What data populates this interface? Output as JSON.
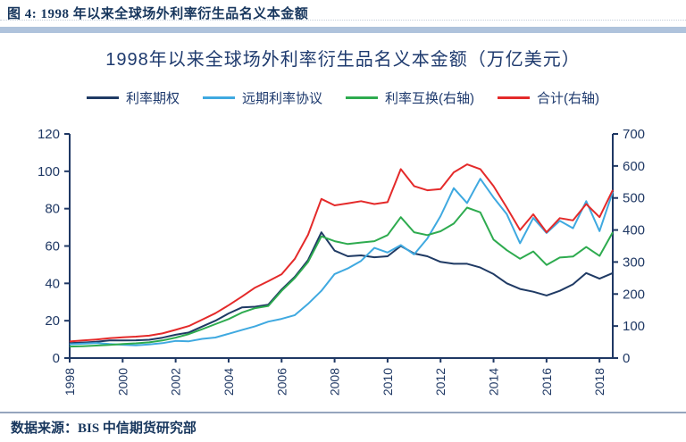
{
  "header": {
    "title": "图 4: 1998 年以来全球场外利率衍生品名义本金额"
  },
  "footer": {
    "source": "数据来源：BIS  中信期货研究部"
  },
  "colors": {
    "axis": "#1f3864",
    "text": "#1e3a6e",
    "header_bar": "#afc3dc"
  },
  "chart_data": {
    "type": "line",
    "title": "1998年以来全球场外利率衍生品名义本金额（万亿美元）",
    "x_unit": "half-year, 1998H1 to 2018H2",
    "x": [
      1998.0,
      1998.5,
      1999.0,
      1999.5,
      2000.0,
      2000.5,
      2001.0,
      2001.5,
      2002.0,
      2002.5,
      2003.0,
      2003.5,
      2004.0,
      2004.5,
      2005.0,
      2005.5,
      2006.0,
      2006.5,
      2007.0,
      2007.5,
      2008.0,
      2008.5,
      2009.0,
      2009.5,
      2010.0,
      2010.5,
      2011.0,
      2011.5,
      2012.0,
      2012.5,
      2013.0,
      2013.5,
      2014.0,
      2014.5,
      2015.0,
      2015.5,
      2016.0,
      2016.5,
      2017.0,
      2017.5,
      2018.0,
      2018.5
    ],
    "x_tick_labels": [
      "1998",
      "2000",
      "2002",
      "2004",
      "2006",
      "2008",
      "2010",
      "2012",
      "2014",
      "2016",
      "2018"
    ],
    "left_axis": {
      "min": 0,
      "max": 120,
      "step": 20,
      "ticks": [
        0,
        20,
        40,
        60,
        80,
        100,
        120
      ]
    },
    "right_axis": {
      "min": 0,
      "max": 700,
      "step": 100,
      "ticks": [
        0,
        100,
        200,
        300,
        400,
        500,
        600,
        700
      ]
    },
    "grid": false,
    "legend_position": "top",
    "series": [
      {
        "name": "利率期权",
        "axis": "left",
        "color": "#1f3a64",
        "values": [
          8.0,
          8.3,
          8.7,
          9.4,
          9.4,
          9.5,
          9.8,
          10.9,
          12.5,
          13.7,
          16.9,
          20.0,
          23.9,
          27.1,
          27.5,
          28.6,
          36.7,
          43.5,
          52.5,
          67.3,
          57.5,
          54.5,
          55.0,
          54.0,
          54.5,
          60.0,
          56.0,
          54.5,
          51.5,
          50.5,
          50.5,
          48.5,
          45.0,
          40.0,
          37.0,
          35.5,
          33.5,
          36.0,
          39.5,
          45.5,
          42.5,
          45.5
        ]
      },
      {
        "name": "远期利率协议",
        "axis": "left",
        "color": "#3fa9e0",
        "values": [
          7.4,
          7.7,
          8.1,
          7.5,
          7.1,
          6.8,
          7.3,
          8.0,
          9.2,
          9.0,
          10.3,
          11.0,
          13.0,
          15.0,
          17.0,
          19.5,
          21.0,
          23.0,
          29.0,
          36.0,
          45.0,
          48.0,
          52.0,
          59.0,
          56.5,
          60.5,
          55.5,
          64.0,
          76.0,
          91.0,
          83.0,
          96.0,
          86.0,
          77.0,
          61.5,
          75.0,
          67.0,
          73.5,
          69.5,
          84.0,
          68.0,
          89.0
        ]
      },
      {
        "name": "利率互换(右轴)",
        "axis": "right",
        "color": "#2eab4f",
        "values": [
          36,
          37,
          39,
          41,
          44,
          46,
          49,
          55,
          64,
          75,
          90,
          106,
          122,
          142,
          156,
          163,
          210,
          250,
          300,
          380,
          365,
          356,
          361,
          365,
          384,
          440,
          393,
          384,
          396,
          420,
          470,
          455,
          370,
          337,
          310,
          333,
          291,
          314,
          317,
          347,
          319,
          393
        ]
      },
      {
        "name": "合计(右轴)",
        "axis": "right",
        "color": "#e42a2a",
        "values": [
          52,
          55,
          58,
          62,
          65,
          67,
          70,
          77,
          88,
          100,
          120,
          140,
          165,
          192,
          220,
          240,
          262,
          310,
          385,
          497,
          477,
          483,
          490,
          481,
          487,
          590,
          537,
          524,
          528,
          580,
          605,
          590,
          537,
          470,
          400,
          449,
          393,
          437,
          430,
          481,
          440,
          525
        ]
      }
    ]
  }
}
